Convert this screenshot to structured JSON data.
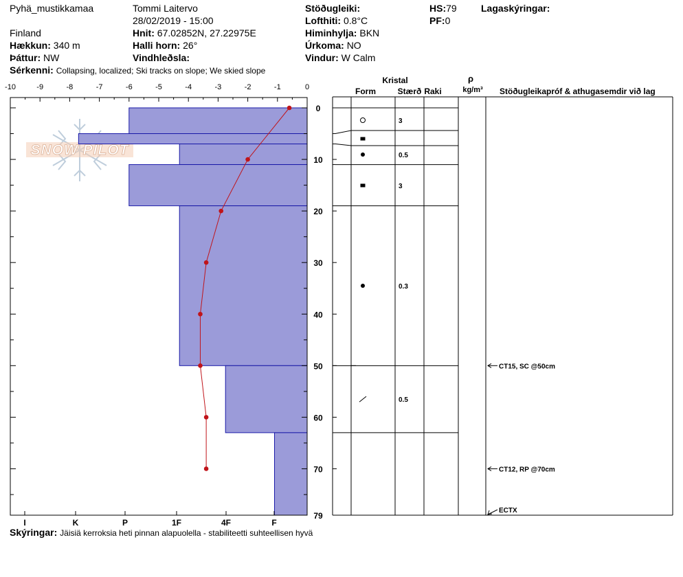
{
  "header": {
    "location": "Pyhä_mustikkamaa",
    "country": "Finland",
    "observer": "Tommi Laitervo",
    "datetime": "28/02/2019 - 15:00",
    "elevation_label": "Hækkun:",
    "elevation_value": "340 m",
    "aspect_label": "Þáttur:",
    "aspect_value": "NW",
    "coords_label": "Hnit:",
    "coords_value": "67.02852N, 27.22975E",
    "slope_label": "Halli horn:",
    "slope_value": "26°",
    "wind_loading_label": "Vindhleðsla:",
    "stability_label": "Stöðugleiki:",
    "air_temp_label": "Lofthiti:",
    "air_temp_value": "0.8°C",
    "sky_label": "Himinhylja:",
    "sky_value": "BKN",
    "precip_label": "Úrkoma:",
    "precip_value": "NO",
    "wind_label": "Vindur:",
    "wind_value": "W Calm",
    "hs_label": "HS:",
    "hs_value": "79",
    "pf_label": "PF:",
    "pf_value": "0",
    "layer_notes_label": "Lagaskýringar:",
    "features_label": "Sérkenni:",
    "features_value": "Collapsing, localized;  Ski tracks on slope;  We skied slope"
  },
  "footer": {
    "notes_label": "Skýringar:",
    "notes_value": "Jäisiä kerroksia heti pinnan alapuolella - stabiliteetti suhteellisen hyvä"
  },
  "logo_text": "SNOW PILOT",
  "colors": {
    "hardness_fill": "#9b9bd9",
    "hardness_stroke": "#1a1aa8",
    "temp_line": "#c0141a"
  },
  "chart_data": {
    "type": "bar",
    "depth_axis": {
      "range": [
        0,
        79
      ],
      "ticks": [
        0,
        10,
        20,
        30,
        40,
        50,
        60,
        70,
        79
      ]
    },
    "temperature_axis": {
      "range": [
        -10,
        0
      ],
      "ticks": [
        "-10",
        "-9",
        "-8",
        "-7",
        "-6",
        "-5",
        "-4",
        "-3",
        "-2",
        "-1",
        "0"
      ]
    },
    "hardness_axis": {
      "ticks": [
        "I",
        "K",
        "P",
        "1F",
        "4F",
        "F"
      ]
    },
    "hardness_profile": [
      {
        "top": 0,
        "bottom": 5,
        "hardness": 6.0
      },
      {
        "top": 5,
        "bottom": 7,
        "hardness": 7.7
      },
      {
        "top": 7,
        "bottom": 11,
        "hardness": 4.3
      },
      {
        "top": 11,
        "bottom": 19,
        "hardness": 6.0
      },
      {
        "top": 19,
        "bottom": 50,
        "hardness": 4.3
      },
      {
        "top": 50,
        "bottom": 63,
        "hardness": 2.75
      },
      {
        "top": 63,
        "bottom": 79,
        "hardness": 1.1
      }
    ],
    "temperature_profile": [
      {
        "depth": 0,
        "temp": -0.6
      },
      {
        "depth": 10,
        "temp": -2.0
      },
      {
        "depth": 20,
        "temp": -2.9
      },
      {
        "depth": 30,
        "temp": -3.4
      },
      {
        "depth": 40,
        "temp": -3.6
      },
      {
        "depth": 50,
        "temp": -3.6
      },
      {
        "depth": 60,
        "temp": -3.4
      },
      {
        "depth": 70,
        "temp": -3.4
      }
    ],
    "layer_boundaries": [
      0,
      5,
      7,
      11,
      19,
      50,
      63
    ],
    "layers": [
      {
        "depth": 2.5,
        "form": "circle-open",
        "size": "3"
      },
      {
        "depth": 6,
        "form": "square",
        "size": ""
      },
      {
        "depth": 9,
        "form": "dot",
        "size": "0.5"
      },
      {
        "depth": 15,
        "form": "square",
        "size": "3"
      },
      {
        "depth": 34.5,
        "form": "dot",
        "size": "0.3"
      },
      {
        "depth": 56.5,
        "form": "slash",
        "size": "0.5"
      }
    ],
    "stability_tests": [
      {
        "depth": 50,
        "label": "CT15, SC @50cm"
      },
      {
        "depth": 70,
        "label": "CT12, RP @70cm"
      },
      {
        "depth": 79,
        "label": "ECTX"
      }
    ],
    "table_headers": {
      "crystal": "Kristal",
      "form": "Form",
      "size": "Stærð",
      "moisture": "Raki",
      "density_symbol": "ρ",
      "density_unit": "kg/m³",
      "tests": "Stöðugleikapróf & athugasemdir við lag"
    }
  }
}
